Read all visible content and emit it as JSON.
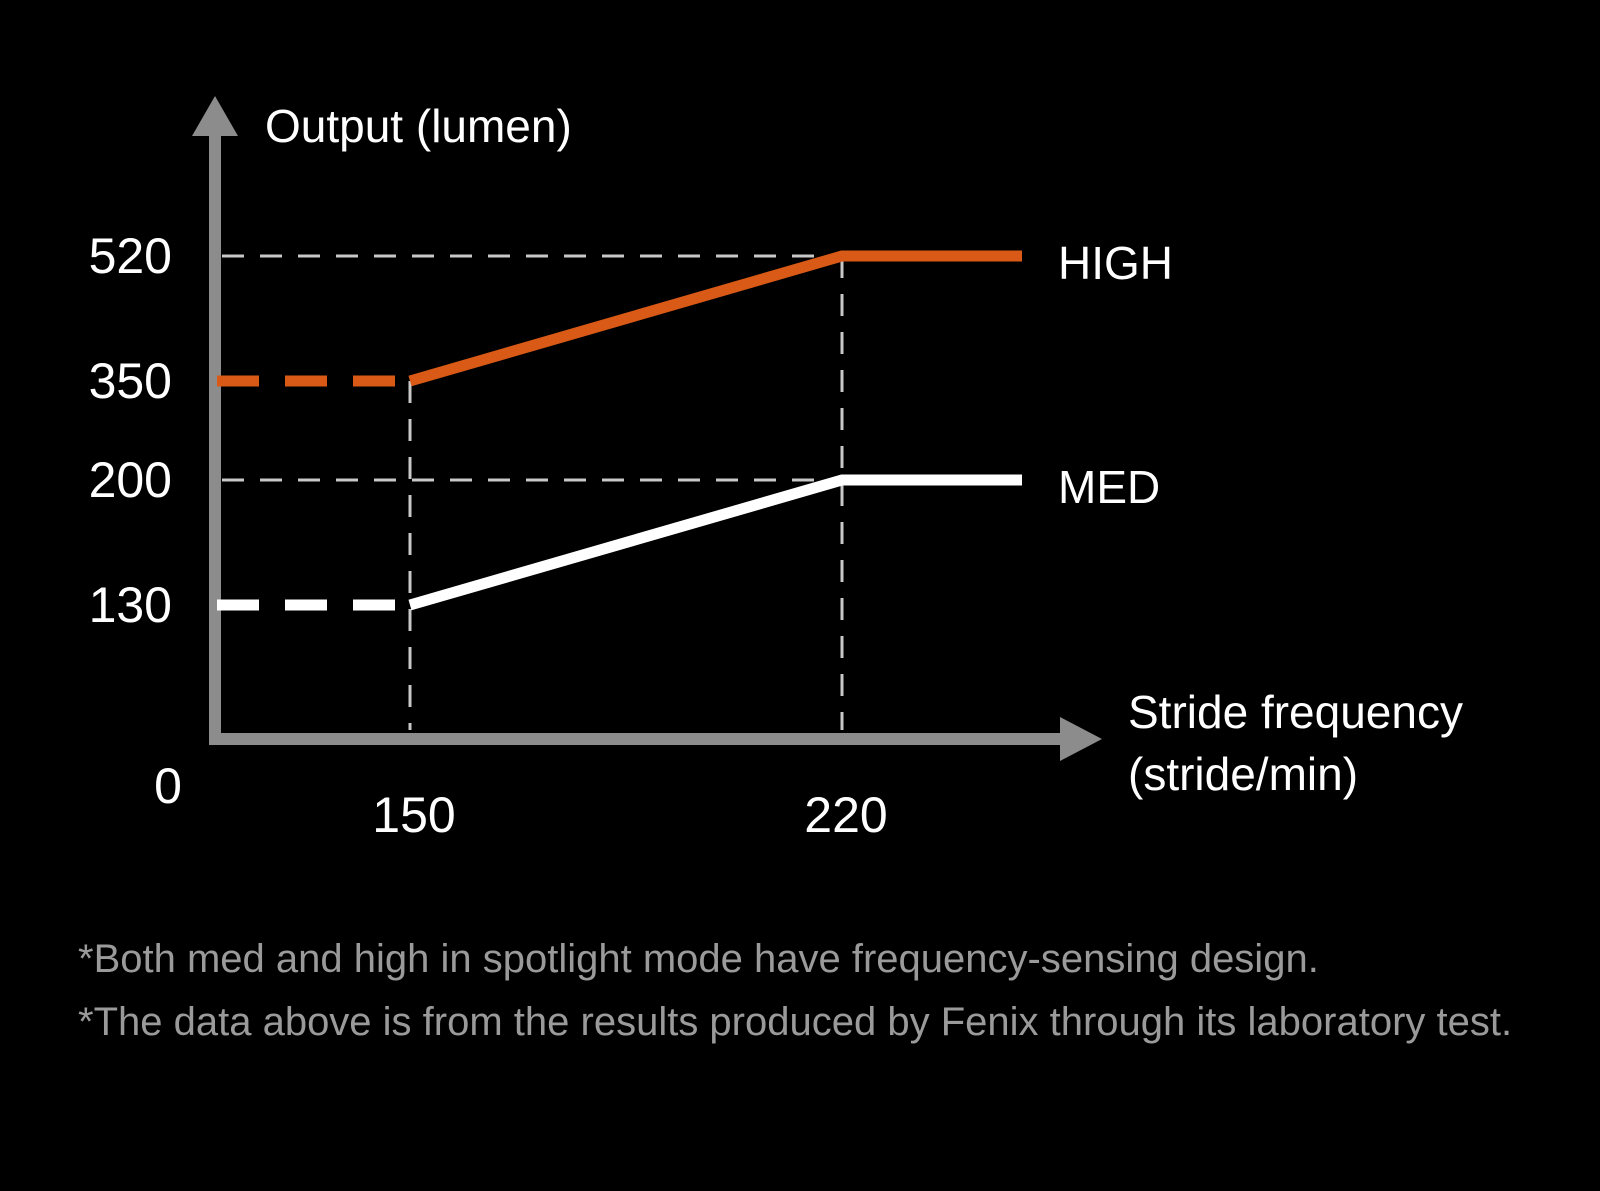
{
  "chart_data": {
    "type": "line",
    "ylabel": "Output (lumen)",
    "xlabel_lines": [
      "Stride frequency",
      "(stride/min)"
    ],
    "origin_label": "0",
    "x_ticks": [
      "150",
      "220"
    ],
    "y_ticks": [
      "520",
      "350",
      "200",
      "130"
    ],
    "grid": "dashed reference lines at x = 150, 220 and y = 520, 200",
    "legend": "labels at right end of each series",
    "series": [
      {
        "name": "HIGH",
        "color": "#d95a16",
        "points": [
          [
            150,
            350
          ],
          [
            220,
            520
          ]
        ],
        "left_dashed_value": 350,
        "flat_after": 220
      },
      {
        "name": "MED",
        "color": "#ffffff",
        "points": [
          [
            150,
            130
          ],
          [
            220,
            200
          ]
        ],
        "left_dashed_value": 130,
        "flat_after": 220
      }
    ]
  },
  "colors": {
    "background": "#000000",
    "axis": "#8c8c8c",
    "reference_lines": "#c8c8c8",
    "high": "#d95a16",
    "med": "#ffffff",
    "notes": "#9a9a9a"
  },
  "notes": [
    "*Both med and high in spotlight mode have frequency-sensing design.",
    "*The data above is from the results produced by Fenix through its laboratory test."
  ]
}
